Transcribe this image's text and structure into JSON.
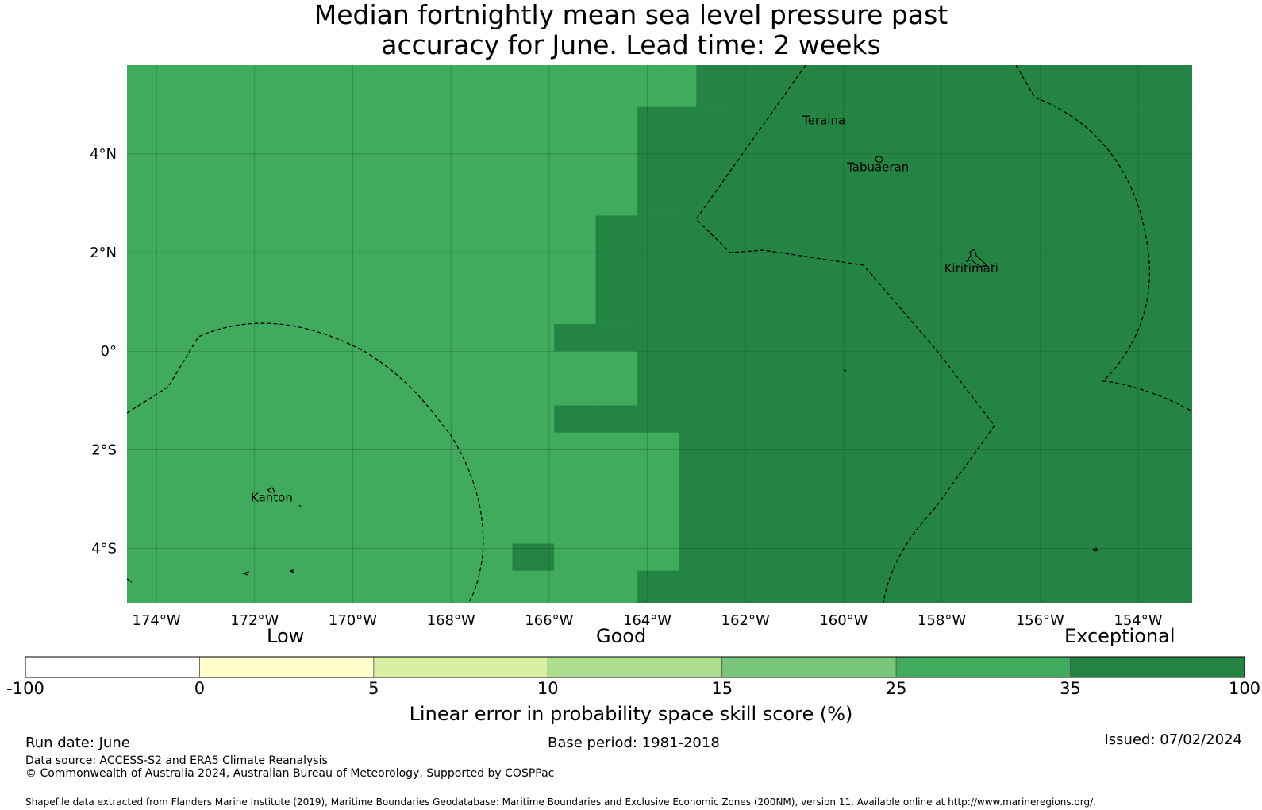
{
  "title": {
    "line1": "Median fortnightly mean sea level pressure past",
    "line2": "accuracy for June. Lead time: 2 weeks"
  },
  "map": {
    "lon_range": [
      -174.6,
      -152.9
    ],
    "lat_range": [
      -5.1,
      5.8
    ],
    "lon_ticks": [
      {
        "value": -174,
        "label": "174°W"
      },
      {
        "value": -172,
        "label": "172°W"
      },
      {
        "value": -170,
        "label": "170°W"
      },
      {
        "value": -168,
        "label": "168°W"
      },
      {
        "value": -166,
        "label": "166°W"
      },
      {
        "value": -164,
        "label": "164°W"
      },
      {
        "value": -162,
        "label": "162°W"
      },
      {
        "value": -160,
        "label": "160°W"
      },
      {
        "value": -158,
        "label": "158°W"
      },
      {
        "value": -156,
        "label": "156°W"
      },
      {
        "value": -154,
        "label": "154°W"
      }
    ],
    "lat_ticks": [
      {
        "value": 4,
        "label": "4°N"
      },
      {
        "value": 2,
        "label": "2°N"
      },
      {
        "value": 0,
        "label": "0°"
      },
      {
        "value": -2,
        "label": "2°S"
      },
      {
        "value": -4,
        "label": "4°S"
      }
    ],
    "places": [
      {
        "name": "Teraina",
        "label": "Teraina",
        "lon": -160.4,
        "lat": 4.6
      },
      {
        "name": "Tabuaeran",
        "label": "Tabuaeran",
        "lon": -159.3,
        "lat": 3.65
      },
      {
        "name": "Kiritimati",
        "label": "Kiritimati",
        "lon": -157.4,
        "lat": 1.6
      },
      {
        "name": "Kanton",
        "label": "Kanton",
        "lon": -171.65,
        "lat": -3.05
      }
    ],
    "colors": {
      "good_zone": "#41ab5d",
      "exceptional_zone": "#238443"
    },
    "exceptional_region_cells": [
      {
        "lon0": -162.3,
        "lon1": -160.8,
        "lat0": 5.55,
        "lat1": 5.8
      },
      {
        "lon0": -163.0,
        "lon1": -162.3,
        "lat0": 4.95,
        "lat1": 5.55
      },
      {
        "lon0": -164.2,
        "lon1": -163.0,
        "lat0": 2.75,
        "lat1": 4.95
      },
      {
        "lon0": -165.05,
        "lon1": -164.2,
        "lat0": 0.55,
        "lat1": 2.75
      },
      {
        "lon0": -165.9,
        "lon1": -165.05,
        "lat0": 0.0,
        "lat1": 0.55
      },
      {
        "lon0": -165.9,
        "lon1": -165.05,
        "lat0": -1.65,
        "lat1": -1.1
      },
      {
        "lon0": -164.2,
        "lon1": -163.35,
        "lat0": -5.1,
        "lat1": -4.45
      },
      {
        "lon0": -166.75,
        "lon1": -165.9,
        "lat0": -4.45,
        "lat1": -3.9
      },
      {
        "lon0": -163.35,
        "lon1": -152.9,
        "lat0": -5.1,
        "lat1": 4.95
      },
      {
        "lon0": -164.2,
        "lon1": -163.35,
        "lat0": -1.65,
        "lat1": 2.75
      },
      {
        "lon0": -165.05,
        "lon1": -164.2,
        "lat0": -1.65,
        "lat1": 0.55
      },
      {
        "lon0": -163.0,
        "lon1": -152.9,
        "lat0": 4.95,
        "lat1": 5.8
      }
    ]
  },
  "colorbar": {
    "category_low": "Low",
    "category_good": "Good",
    "category_exceptional": "Exceptional",
    "bins": [
      {
        "from": -100,
        "to": 0,
        "color": "#ffffff"
      },
      {
        "from": 0,
        "to": 5,
        "color": "#ffffcc"
      },
      {
        "from": 5,
        "to": 10,
        "color": "#d9f0a3"
      },
      {
        "from": 10,
        "to": 15,
        "color": "#addd8e"
      },
      {
        "from": 15,
        "to": 25,
        "color": "#78c679"
      },
      {
        "from": 25,
        "to": 35,
        "color": "#41ab5d"
      },
      {
        "from": 35,
        "to": 100,
        "color": "#238443"
      }
    ],
    "tick_labels": [
      "-100",
      "0",
      "5",
      "10",
      "15",
      "25",
      "35",
      "100"
    ],
    "label": "Linear error in probability space skill score (%)"
  },
  "footer": {
    "run_date": "Run date: June",
    "base_period": "Base period: 1981-2018",
    "issued": "Issued: 07/02/2024",
    "data_source": "Data source: ACCESS-S2 and ERA5 Climate Reanalysis",
    "copyright": "© Commonwealth of Australia 2024, Australian Bureau of Meteorology, Supported by COSPPac",
    "shapefile": "Shapefile data extracted from Flanders Marine Institute (2019), Maritime Boundaries Geodatabase: Maritime Boundaries and Exclusive Economic Zones (200NM), version 11. Available online at http://www.marineregions.org/."
  }
}
